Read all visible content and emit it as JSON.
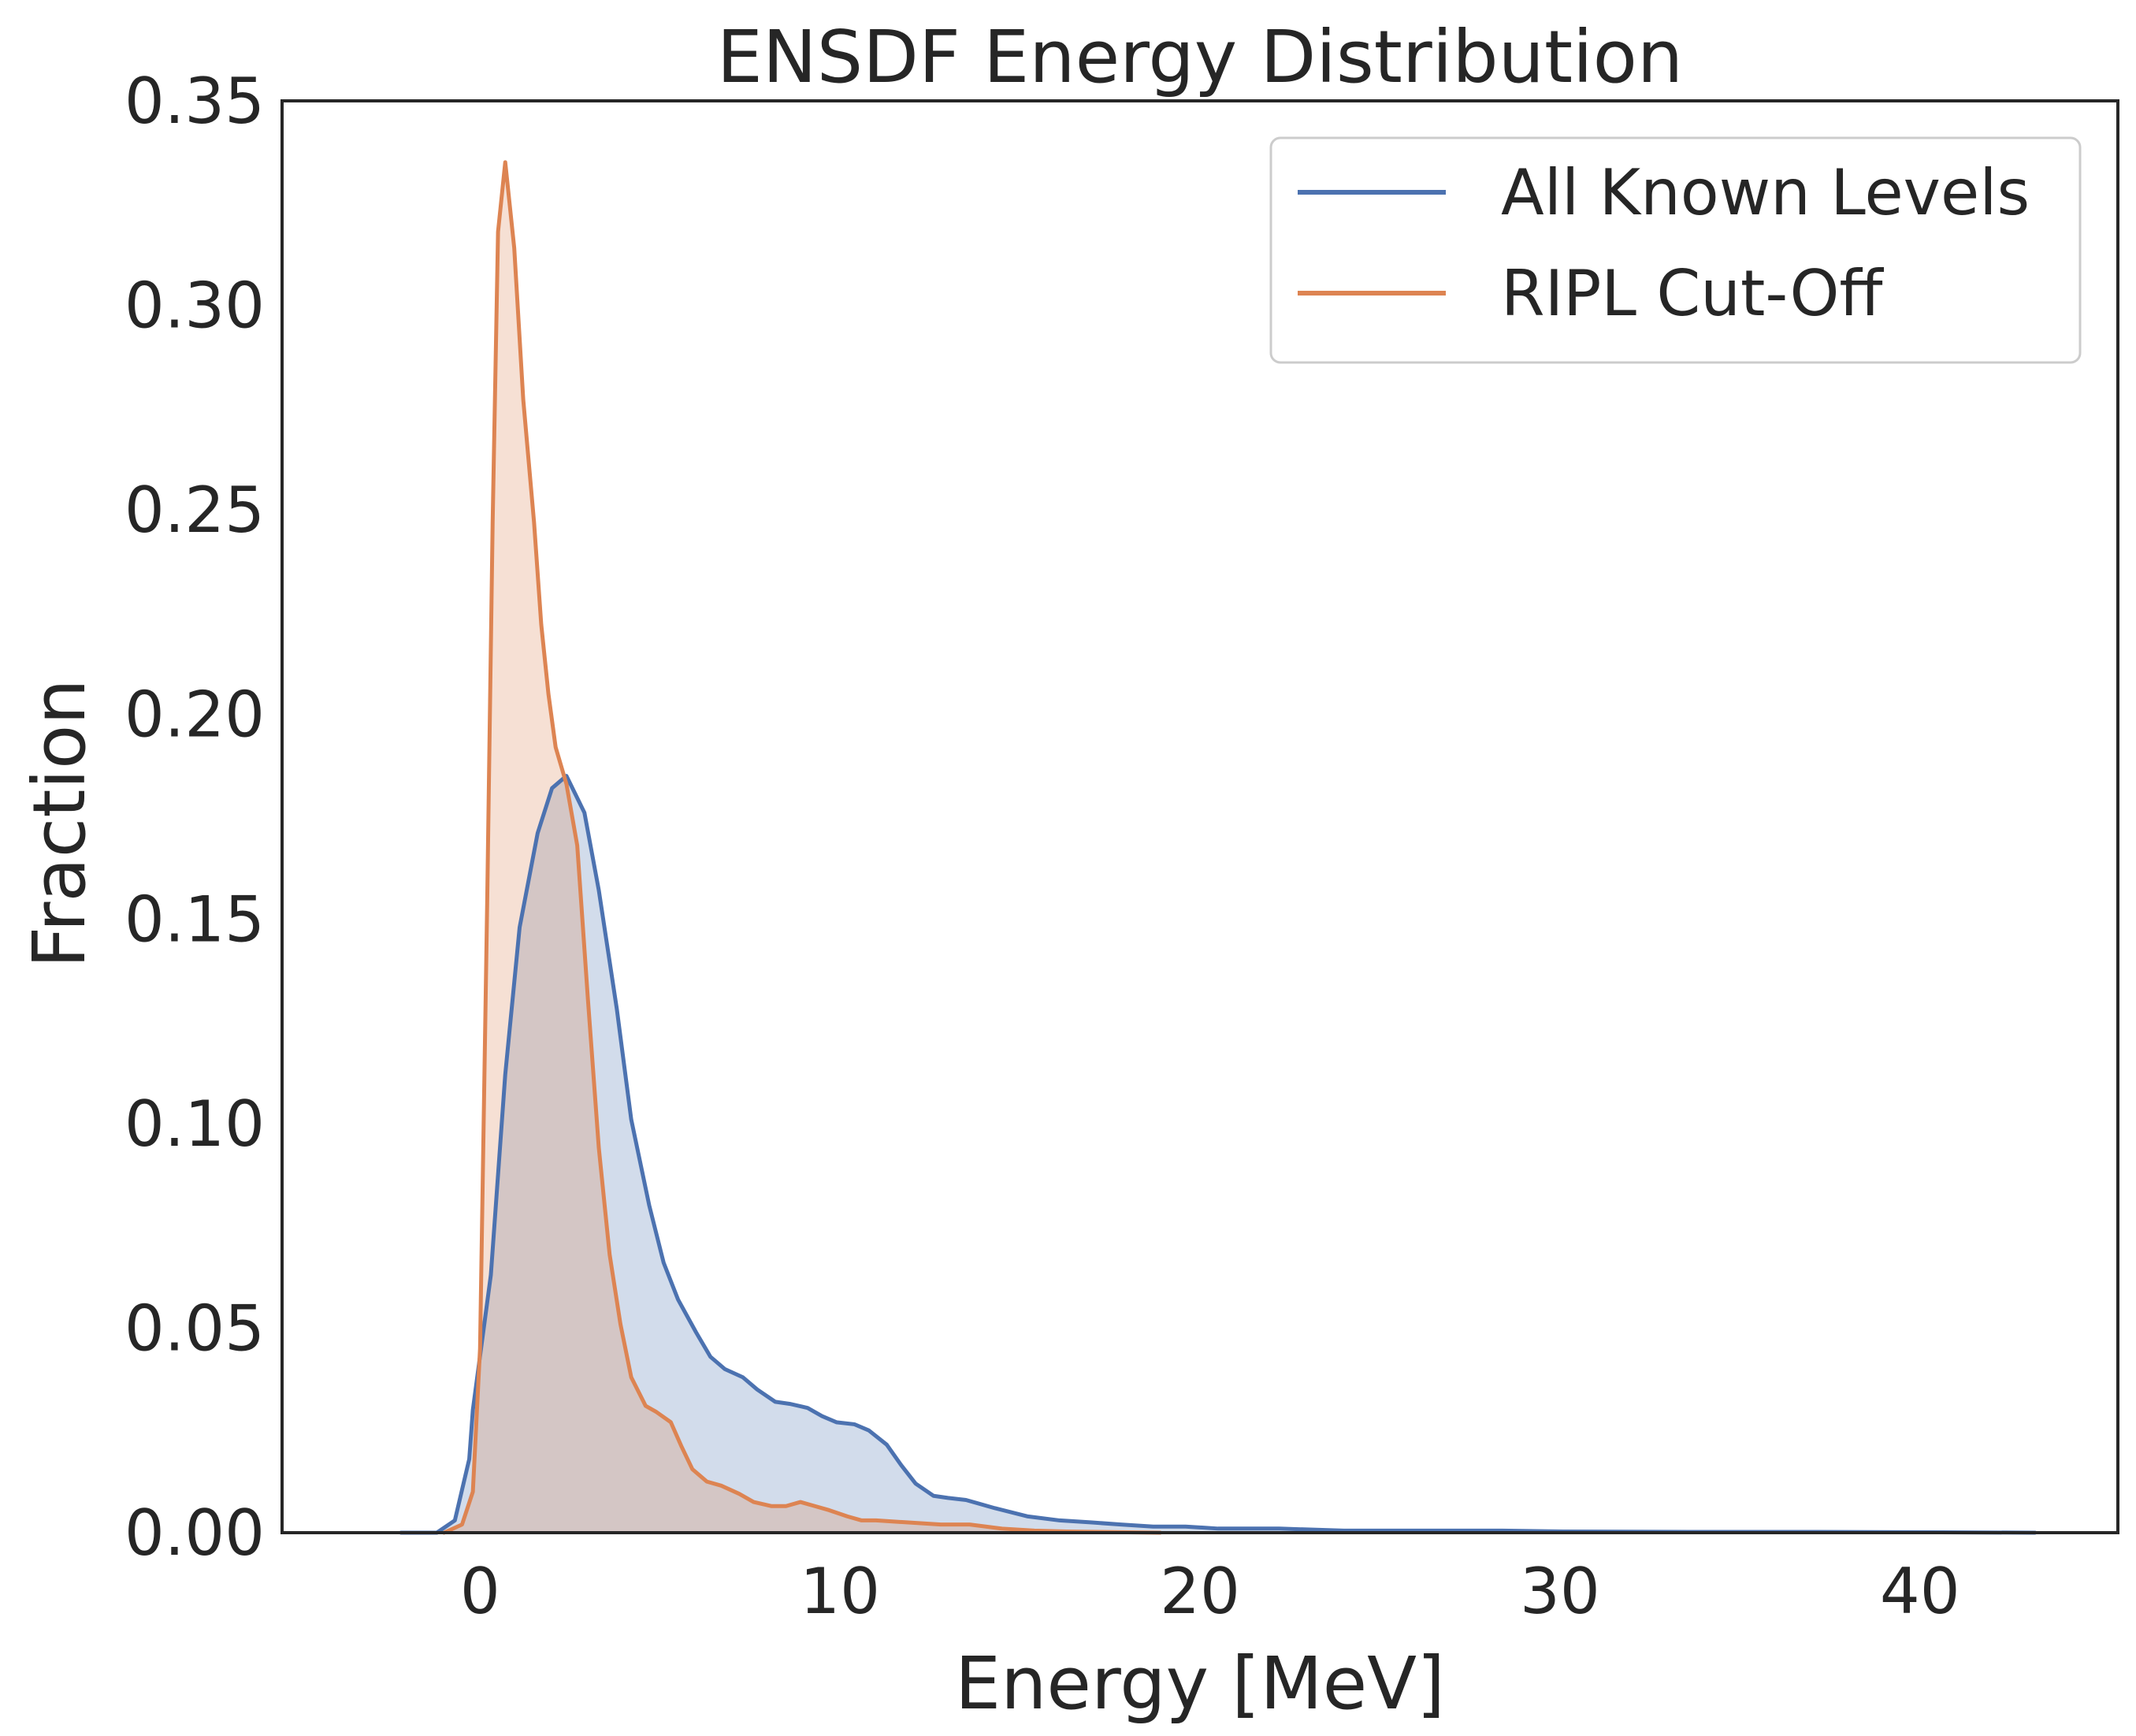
{
  "chart_data": {
    "type": "area",
    "title": "ENSDF Energy Distribution",
    "xlabel": "Energy [MeV]",
    "ylabel": "Fraction",
    "xlim": [
      -5.5,
      45.5
    ],
    "ylim": [
      0,
      0.35
    ],
    "xticks": [
      0,
      10,
      20,
      30,
      40
    ],
    "yticks": [
      0.0,
      0.05,
      0.1,
      0.15,
      0.2,
      0.25,
      0.3,
      0.35
    ],
    "ytick_labels": [
      "0.00",
      "0.05",
      "0.10",
      "0.15",
      "0.20",
      "0.25",
      "0.30",
      "0.35"
    ],
    "xtick_labels": [
      "0",
      "10",
      "20",
      "30",
      "40"
    ],
    "grid": false,
    "legend_position": "top-right",
    "series": [
      {
        "name": "All Known Levels",
        "color": "#4c72b0",
        "fill_color": "#4c72b0",
        "x": [
          -2.2,
          -1.2,
          -0.7,
          -0.3,
          -0.2,
          0.3,
          0.7,
          1.1,
          1.6,
          2.0,
          2.4,
          2.9,
          3.3,
          3.8,
          4.2,
          4.7,
          5.1,
          5.5,
          6.0,
          6.4,
          6.8,
          7.3,
          7.7,
          8.2,
          8.6,
          9.1,
          9.5,
          9.9,
          10.4,
          10.8,
          11.3,
          11.7,
          12.1,
          12.6,
          13.0,
          13.5,
          14.3,
          15.2,
          16.1,
          17.0,
          17.8,
          18.7,
          19.6,
          20.5,
          22.2,
          24.0,
          26.6,
          28.4,
          30.1,
          33.6,
          37.1,
          40.6,
          43.2
        ],
        "y": [
          0.0,
          0.0,
          0.003,
          0.018,
          0.03,
          0.063,
          0.112,
          0.148,
          0.171,
          0.182,
          0.185,
          0.176,
          0.157,
          0.128,
          0.101,
          0.08,
          0.066,
          0.057,
          0.049,
          0.043,
          0.04,
          0.038,
          0.035,
          0.032,
          0.0315,
          0.0305,
          0.0285,
          0.027,
          0.0265,
          0.025,
          0.0215,
          0.0165,
          0.012,
          0.009,
          0.0085,
          0.008,
          0.006,
          0.004,
          0.003,
          0.0025,
          0.002,
          0.0015,
          0.0015,
          0.001,
          0.001,
          0.0005,
          0.0005,
          0.0005,
          0.0003,
          0.0002,
          0.0002,
          0.0001,
          0.0
        ],
        "label_bind": "chart_data.series.0.name"
      },
      {
        "name": "RIPL Cut-Off",
        "color": "#dd8452",
        "fill_color": "#dd8452",
        "x": [
          -1.0,
          -0.5,
          -0.2,
          0.0,
          0.2,
          0.35,
          0.5,
          0.7,
          0.95,
          1.2,
          1.5,
          1.7,
          1.9,
          2.1,
          2.4,
          2.7,
          3.0,
          3.3,
          3.6,
          3.9,
          4.2,
          4.6,
          4.9,
          5.3,
          5.6,
          5.9,
          6.3,
          6.7,
          7.2,
          7.6,
          8.1,
          8.5,
          8.9,
          9.3,
          9.7,
          10.2,
          10.6,
          11.0,
          11.9,
          12.8,
          13.6,
          14.5,
          15.4,
          16.3,
          17.2,
          18.0,
          18.9
        ],
        "y": [
          0.0,
          0.002,
          0.01,
          0.045,
          0.155,
          0.247,
          0.318,
          0.335,
          0.314,
          0.277,
          0.247,
          0.222,
          0.205,
          0.192,
          0.183,
          0.168,
          0.13,
          0.094,
          0.068,
          0.051,
          0.038,
          0.031,
          0.0295,
          0.027,
          0.021,
          0.0155,
          0.0125,
          0.0115,
          0.0095,
          0.0075,
          0.0065,
          0.0065,
          0.0075,
          0.0065,
          0.0055,
          0.004,
          0.003,
          0.003,
          0.0025,
          0.002,
          0.002,
          0.001,
          0.0005,
          0.0003,
          0.0002,
          0.0001,
          0.0
        ],
        "label_bind": "chart_data.series.1.name"
      }
    ]
  }
}
